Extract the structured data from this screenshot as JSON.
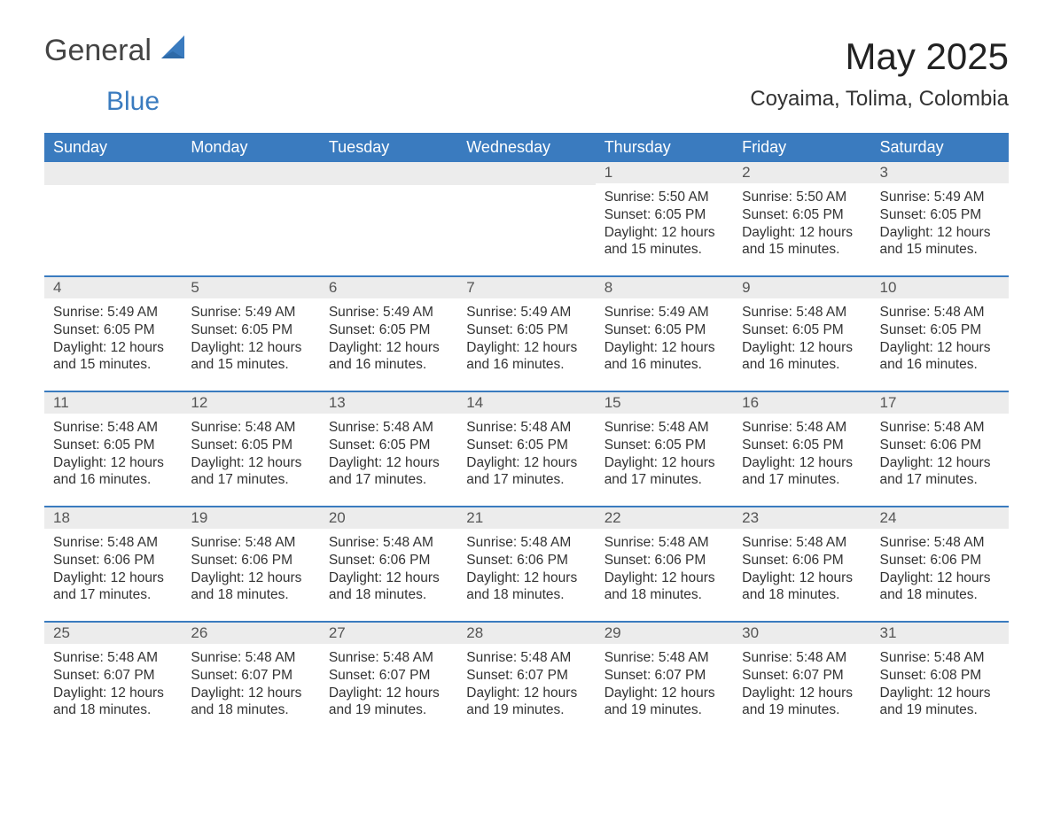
{
  "logo": {
    "word1": "General",
    "word2": "Blue"
  },
  "title": "May 2025",
  "location": "Coyaima, Tolima, Colombia",
  "colors": {
    "header_bg": "#3a7bbf",
    "header_text": "#ffffff",
    "daynum_bg": "#ececec",
    "row_divider": "#3a7bbf",
    "text": "#333333",
    "logo_blue": "#3a7bbf",
    "background": "#ffffff"
  },
  "typography": {
    "title_fontsize_pt": 32,
    "location_fontsize_pt": 18,
    "header_fontsize_pt": 14,
    "body_fontsize_pt": 12
  },
  "weekdays": [
    "Sunday",
    "Monday",
    "Tuesday",
    "Wednesday",
    "Thursday",
    "Friday",
    "Saturday"
  ],
  "labels": {
    "sunrise": "Sunrise:",
    "sunset": "Sunset:",
    "daylight": "Daylight:"
  },
  "weeks": [
    [
      null,
      null,
      null,
      null,
      {
        "day": "1",
        "sunrise": "5:50 AM",
        "sunset": "6:05 PM",
        "daylight_l1": "12 hours",
        "daylight_l2": "and 15 minutes."
      },
      {
        "day": "2",
        "sunrise": "5:50 AM",
        "sunset": "6:05 PM",
        "daylight_l1": "12 hours",
        "daylight_l2": "and 15 minutes."
      },
      {
        "day": "3",
        "sunrise": "5:49 AM",
        "sunset": "6:05 PM",
        "daylight_l1": "12 hours",
        "daylight_l2": "and 15 minutes."
      }
    ],
    [
      {
        "day": "4",
        "sunrise": "5:49 AM",
        "sunset": "6:05 PM",
        "daylight_l1": "12 hours",
        "daylight_l2": "and 15 minutes."
      },
      {
        "day": "5",
        "sunrise": "5:49 AM",
        "sunset": "6:05 PM",
        "daylight_l1": "12 hours",
        "daylight_l2": "and 15 minutes."
      },
      {
        "day": "6",
        "sunrise": "5:49 AM",
        "sunset": "6:05 PM",
        "daylight_l1": "12 hours",
        "daylight_l2": "and 16 minutes."
      },
      {
        "day": "7",
        "sunrise": "5:49 AM",
        "sunset": "6:05 PM",
        "daylight_l1": "12 hours",
        "daylight_l2": "and 16 minutes."
      },
      {
        "day": "8",
        "sunrise": "5:49 AM",
        "sunset": "6:05 PM",
        "daylight_l1": "12 hours",
        "daylight_l2": "and 16 minutes."
      },
      {
        "day": "9",
        "sunrise": "5:48 AM",
        "sunset": "6:05 PM",
        "daylight_l1": "12 hours",
        "daylight_l2": "and 16 minutes."
      },
      {
        "day": "10",
        "sunrise": "5:48 AM",
        "sunset": "6:05 PM",
        "daylight_l1": "12 hours",
        "daylight_l2": "and 16 minutes."
      }
    ],
    [
      {
        "day": "11",
        "sunrise": "5:48 AM",
        "sunset": "6:05 PM",
        "daylight_l1": "12 hours",
        "daylight_l2": "and 16 minutes."
      },
      {
        "day": "12",
        "sunrise": "5:48 AM",
        "sunset": "6:05 PM",
        "daylight_l1": "12 hours",
        "daylight_l2": "and 17 minutes."
      },
      {
        "day": "13",
        "sunrise": "5:48 AM",
        "sunset": "6:05 PM",
        "daylight_l1": "12 hours",
        "daylight_l2": "and 17 minutes."
      },
      {
        "day": "14",
        "sunrise": "5:48 AM",
        "sunset": "6:05 PM",
        "daylight_l1": "12 hours",
        "daylight_l2": "and 17 minutes."
      },
      {
        "day": "15",
        "sunrise": "5:48 AM",
        "sunset": "6:05 PM",
        "daylight_l1": "12 hours",
        "daylight_l2": "and 17 minutes."
      },
      {
        "day": "16",
        "sunrise": "5:48 AM",
        "sunset": "6:05 PM",
        "daylight_l1": "12 hours",
        "daylight_l2": "and 17 minutes."
      },
      {
        "day": "17",
        "sunrise": "5:48 AM",
        "sunset": "6:06 PM",
        "daylight_l1": "12 hours",
        "daylight_l2": "and 17 minutes."
      }
    ],
    [
      {
        "day": "18",
        "sunrise": "5:48 AM",
        "sunset": "6:06 PM",
        "daylight_l1": "12 hours",
        "daylight_l2": "and 17 minutes."
      },
      {
        "day": "19",
        "sunrise": "5:48 AM",
        "sunset": "6:06 PM",
        "daylight_l1": "12 hours",
        "daylight_l2": "and 18 minutes."
      },
      {
        "day": "20",
        "sunrise": "5:48 AM",
        "sunset": "6:06 PM",
        "daylight_l1": "12 hours",
        "daylight_l2": "and 18 minutes."
      },
      {
        "day": "21",
        "sunrise": "5:48 AM",
        "sunset": "6:06 PM",
        "daylight_l1": "12 hours",
        "daylight_l2": "and 18 minutes."
      },
      {
        "day": "22",
        "sunrise": "5:48 AM",
        "sunset": "6:06 PM",
        "daylight_l1": "12 hours",
        "daylight_l2": "and 18 minutes."
      },
      {
        "day": "23",
        "sunrise": "5:48 AM",
        "sunset": "6:06 PM",
        "daylight_l1": "12 hours",
        "daylight_l2": "and 18 minutes."
      },
      {
        "day": "24",
        "sunrise": "5:48 AM",
        "sunset": "6:06 PM",
        "daylight_l1": "12 hours",
        "daylight_l2": "and 18 minutes."
      }
    ],
    [
      {
        "day": "25",
        "sunrise": "5:48 AM",
        "sunset": "6:07 PM",
        "daylight_l1": "12 hours",
        "daylight_l2": "and 18 minutes."
      },
      {
        "day": "26",
        "sunrise": "5:48 AM",
        "sunset": "6:07 PM",
        "daylight_l1": "12 hours",
        "daylight_l2": "and 18 minutes."
      },
      {
        "day": "27",
        "sunrise": "5:48 AM",
        "sunset": "6:07 PM",
        "daylight_l1": "12 hours",
        "daylight_l2": "and 19 minutes."
      },
      {
        "day": "28",
        "sunrise": "5:48 AM",
        "sunset": "6:07 PM",
        "daylight_l1": "12 hours",
        "daylight_l2": "and 19 minutes."
      },
      {
        "day": "29",
        "sunrise": "5:48 AM",
        "sunset": "6:07 PM",
        "daylight_l1": "12 hours",
        "daylight_l2": "and 19 minutes."
      },
      {
        "day": "30",
        "sunrise": "5:48 AM",
        "sunset": "6:07 PM",
        "daylight_l1": "12 hours",
        "daylight_l2": "and 19 minutes."
      },
      {
        "day": "31",
        "sunrise": "5:48 AM",
        "sunset": "6:08 PM",
        "daylight_l1": "12 hours",
        "daylight_l2": "and 19 minutes."
      }
    ]
  ]
}
